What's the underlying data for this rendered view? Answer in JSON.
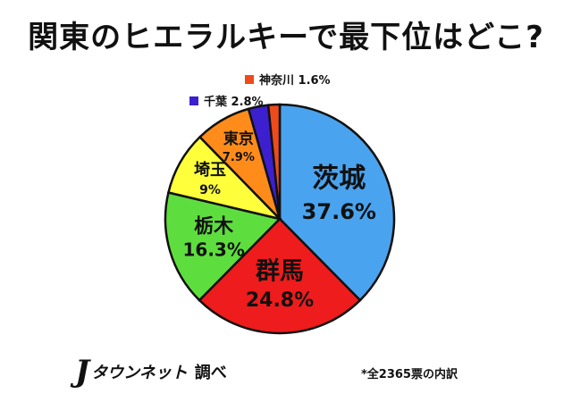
{
  "title": "関東のヒエラルキーで最下位はどこ?",
  "brand": {
    "mark": "J",
    "name": "タウンネット",
    "sub": "調べ"
  },
  "note": "*全2365票の内訳",
  "chart_data": {
    "type": "pie",
    "title": "関東のヒエラルキーで最下位はどこ?",
    "slices": [
      {
        "label": "茨城",
        "value": 37.6,
        "value_label": "37.6%",
        "color": "#4aa3ee"
      },
      {
        "label": "群馬",
        "value": 24.8,
        "value_label": "24.8%",
        "color": "#ee1c1c"
      },
      {
        "label": "栃木",
        "value": 16.3,
        "value_label": "16.3%",
        "color": "#5ede3e"
      },
      {
        "label": "埼玉",
        "value": 9,
        "value_label": "9%",
        "color": "#ffff3c"
      },
      {
        "label": "東京",
        "value": 7.9,
        "value_label": "7.9%",
        "color": "#ff8c1a"
      },
      {
        "label": "千葉",
        "value": 2.8,
        "value_label": "2.8%",
        "color": "#3c1fcf"
      },
      {
        "label": "神奈川",
        "value": 1.6,
        "value_label": "1.6%",
        "color": "#ee4b1c"
      }
    ],
    "start": "12 o'clock",
    "direction": "clockwise",
    "legend": "none"
  }
}
